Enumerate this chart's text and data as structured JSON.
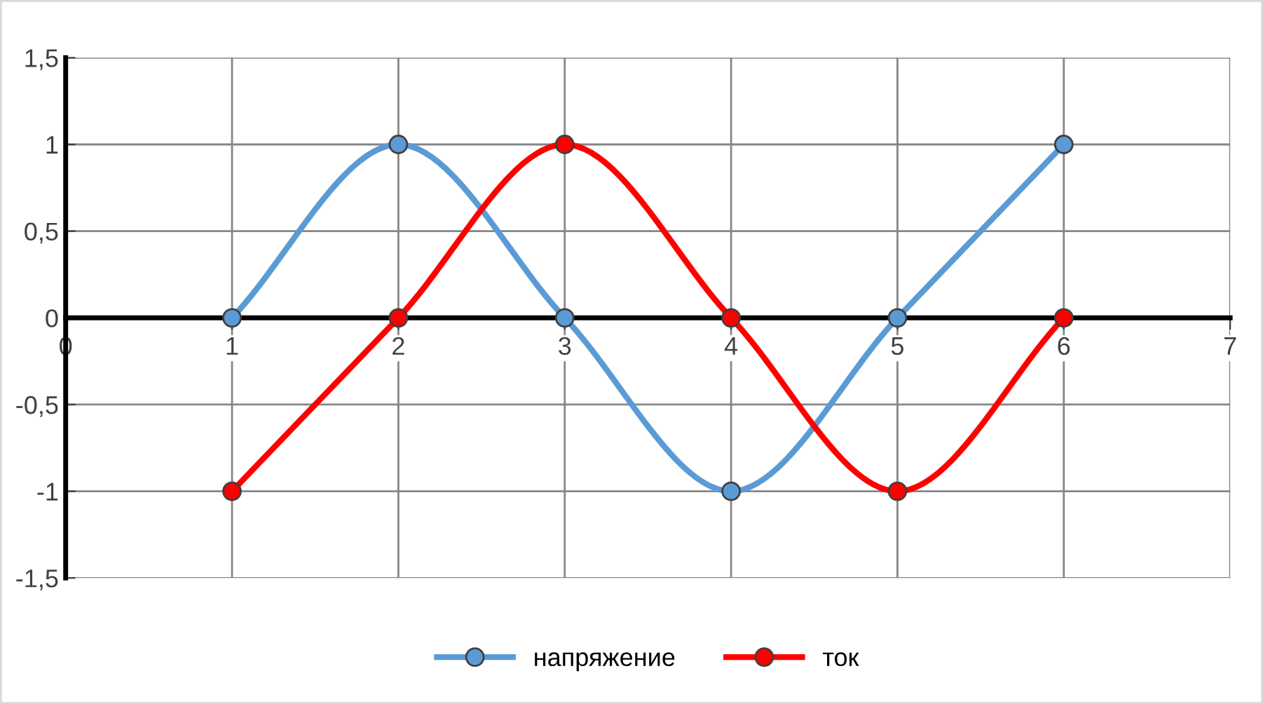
{
  "chart_data": {
    "type": "line",
    "x": [
      1,
      2,
      3,
      4,
      5,
      6
    ],
    "series": [
      {
        "name": "напряжение",
        "color": "#5b9bd5",
        "values": [
          0,
          1,
          0,
          -1,
          0,
          1
        ]
      },
      {
        "name": "ток",
        "color": "#ff0000",
        "values": [
          -1,
          0,
          1,
          0,
          -1,
          0
        ]
      }
    ],
    "xlim": [
      0,
      7
    ],
    "xticks": [
      0,
      1,
      2,
      3,
      4,
      5,
      6,
      7
    ],
    "ylim": [
      -1.5,
      1.5
    ],
    "yticks": [
      {
        "value": -1.5,
        "label": "-1,5"
      },
      {
        "value": -1,
        "label": "-1"
      },
      {
        "value": -0.5,
        "label": "-0,5"
      },
      {
        "value": 0,
        "label": "0"
      },
      {
        "value": 0.5,
        "label": "0,5"
      },
      {
        "value": 1,
        "label": "1"
      },
      {
        "value": 1.5,
        "label": "1,5"
      }
    ],
    "grid": true,
    "legend": "bottom",
    "marker": "circle",
    "line_style": "solid"
  }
}
